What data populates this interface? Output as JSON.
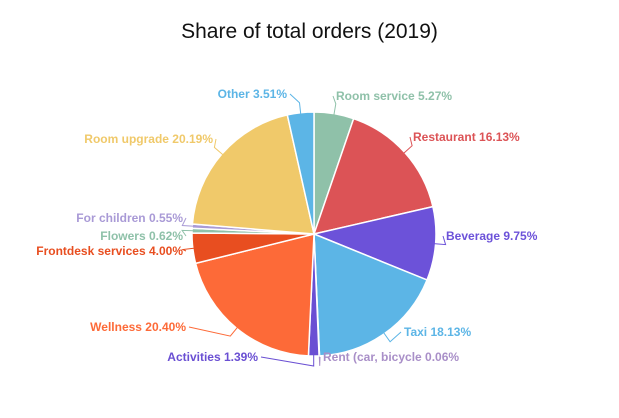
{
  "chart_data": {
    "type": "pie",
    "title": "Share of total orders (2019)",
    "start_angle_deg": 0,
    "direction": "clockwise",
    "slices": [
      {
        "label": "Room service 5.27%",
        "value": 5.27,
        "color": "#8fc1a9"
      },
      {
        "label": "Restaurant 16.13%",
        "value": 16.13,
        "color": "#dc5356"
      },
      {
        "label": "Beverage 9.75%",
        "value": 9.75,
        "color": "#6c52d9"
      },
      {
        "label": "Taxi 18.13%",
        "value": 18.13,
        "color": "#5cb5e6"
      },
      {
        "label": "Rent (car, bicycle 0.06%",
        "value": 0.06,
        "color": "#a98fc8"
      },
      {
        "label": "Activities 1.39%",
        "value": 1.39,
        "color": "#6a4fd3"
      },
      {
        "label": "Wellness 20.40%",
        "value": 20.4,
        "color": "#fd6a38"
      },
      {
        "label": "Frontdesk services 4.00%",
        "value": 4.0,
        "color": "#e84e20"
      },
      {
        "label": "Flowers 0.62%",
        "value": 0.62,
        "color": "#8fc1a9"
      },
      {
        "label": "For children 0.55%",
        "value": 0.55,
        "color": "#a99ad6"
      },
      {
        "label": "Room upgrade 20.19%",
        "value": 20.19,
        "color": "#f0c96a"
      },
      {
        "label": "Other 3.51%",
        "value": 3.51,
        "color": "#5cb5e6"
      }
    ]
  }
}
